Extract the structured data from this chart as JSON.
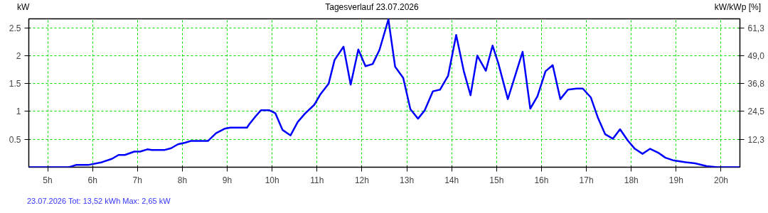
{
  "chart_data": {
    "type": "line",
    "title": "Tagesverlauf 23.07.2026",
    "ylabel": "kW",
    "y2label": "kW/kWp [%]",
    "annotations": [
      "23.07.2026 Tot: 13,52 kWh Max: 2,65 kW"
    ],
    "x": [
      4.58,
      5.475,
      5.63,
      5.9,
      6.21,
      6.43,
      6.58,
      6.72,
      6.93,
      7.06,
      7.22,
      7.32,
      7.61,
      7.75,
      7.9,
      8.06,
      8.19,
      8.57,
      8.75,
      8.94,
      9.07,
      9.44,
      9.49,
      9.62,
      9.75,
      9.94,
      10.07,
      10.23,
      10.41,
      10.57,
      10.73,
      10.94,
      11.07,
      11.26,
      11.39,
      11.59,
      11.75,
      11.92,
      12.08,
      12.24,
      12.39,
      12.59,
      12.74,
      12.92,
      13.08,
      13.25,
      13.4,
      13.58,
      13.74,
      13.92,
      14.1,
      14.27,
      14.42,
      14.57,
      14.76,
      14.91,
      15.04,
      15.25,
      15.58,
      15.75,
      15.91,
      16.09,
      16.25,
      16.42,
      16.59,
      16.78,
      16.92,
      17.1,
      17.26,
      17.42,
      17.59,
      17.75,
      17.92,
      18.08,
      18.25,
      18.42,
      18.6,
      18.76,
      18.95,
      19.21,
      19.42,
      19.68,
      19.91,
      20.42
    ],
    "series": [
      {
        "color": "#0000ff",
        "values": [
          0,
          0,
          0.04,
          0.04,
          0.09,
          0.15,
          0.22,
          0.22,
          0.28,
          0.28,
          0.32,
          0.31,
          0.31,
          0.34,
          0.41,
          0.44,
          0.47,
          0.47,
          0.61,
          0.69,
          0.71,
          0.71,
          0.77,
          0.9,
          1.02,
          1.02,
          0.97,
          0.67,
          0.57,
          0.81,
          0.96,
          1.12,
          1.3,
          1.5,
          1.92,
          2.16,
          1.48,
          2.11,
          1.81,
          1.85,
          2.1,
          2.65,
          1.8,
          1.6,
          1.04,
          0.87,
          1.02,
          1.36,
          1.39,
          1.64,
          2.37,
          1.72,
          1.29,
          2.0,
          1.73,
          2.18,
          1.86,
          1.22,
          2.07,
          1.05,
          1.27,
          1.72,
          1.83,
          1.22,
          1.39,
          1.41,
          1.41,
          1.25,
          0.88,
          0.59,
          0.51,
          0.68,
          0.48,
          0.33,
          0.24,
          0.33,
          0.26,
          0.17,
          0.12,
          0.09,
          0.07,
          0.02,
          0,
          0
        ]
      }
    ],
    "xlim": [
      4.58,
      20.42
    ],
    "xticks": [
      {
        "value": 5,
        "label": "5h"
      },
      {
        "value": 6,
        "label": "6h"
      },
      {
        "value": 7,
        "label": "7h"
      },
      {
        "value": 8,
        "label": "8h"
      },
      {
        "value": 9,
        "label": "9h"
      },
      {
        "value": 10,
        "label": "10h"
      },
      {
        "value": 11,
        "label": "11h"
      },
      {
        "value": 12,
        "label": "12h"
      },
      {
        "value": 13,
        "label": "13h"
      },
      {
        "value": 14,
        "label": "14h"
      },
      {
        "value": 15,
        "label": "15h"
      },
      {
        "value": 16,
        "label": "16h"
      },
      {
        "value": 17,
        "label": "17h"
      },
      {
        "value": 18,
        "label": "18h"
      },
      {
        "value": 19,
        "label": "19h"
      },
      {
        "value": 20,
        "label": "20h"
      }
    ],
    "ylim": [
      0,
      2.66
    ],
    "yticks": [
      0.5,
      1,
      1.5,
      2,
      2.5
    ],
    "y2lim": [
      0,
      65.2
    ],
    "y2ticks": [
      {
        "value": 12.26,
        "label": "12,3"
      },
      {
        "value": 24.52,
        "label": "24,5"
      },
      {
        "value": 36.78,
        "label": "36,8"
      },
      {
        "value": 49.04,
        "label": "49,0"
      },
      {
        "value": 61.3,
        "label": "61,3"
      }
    ],
    "grid": true,
    "marker": "none",
    "line_style": "solid"
  }
}
